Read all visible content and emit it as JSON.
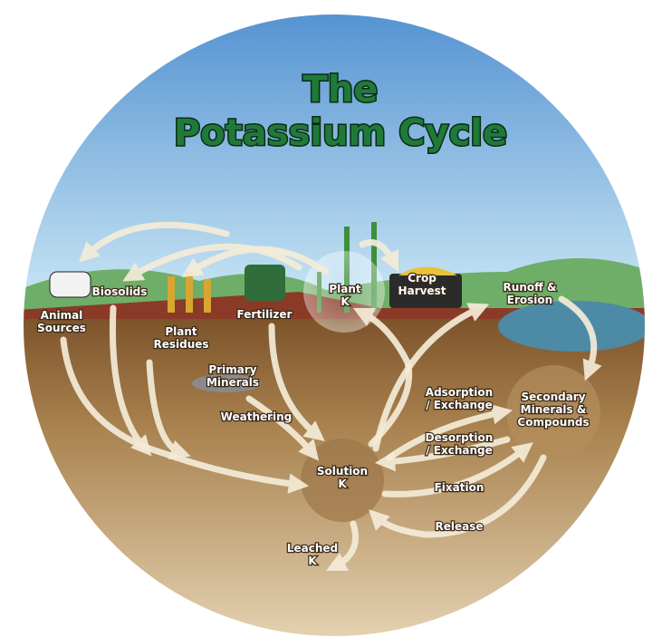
{
  "title": [
    "The",
    "Potassium Cycle"
  ],
  "nodes": [
    {
      "lines": [
        "Animal",
        "Sources"
      ]
    },
    {
      "lines": [
        "Biosolids"
      ]
    },
    {
      "lines": [
        "Plant",
        "Residues"
      ]
    },
    {
      "lines": [
        "Fertilizer"
      ]
    },
    {
      "lines": [
        "Plant",
        "K"
      ]
    },
    {
      "lines": [
        "Crop",
        "Harvest"
      ]
    },
    {
      "lines": [
        "Runoff &",
        "Erosion"
      ]
    },
    {
      "lines": [
        "Primary",
        "Minerals"
      ]
    },
    {
      "lines": [
        "Weathering"
      ]
    },
    {
      "lines": [
        "Adsorption",
        "/ Exchange"
      ]
    },
    {
      "lines": [
        "Secondary",
        "Minerals &",
        "Compounds"
      ]
    },
    {
      "lines": [
        "Desorption",
        "/ Exchange"
      ]
    },
    {
      "lines": [
        "Solution",
        "K"
      ]
    },
    {
      "lines": [
        "Fixation"
      ]
    },
    {
      "lines": [
        "Release"
      ]
    },
    {
      "lines": [
        "Leached",
        "K"
      ]
    }
  ]
}
